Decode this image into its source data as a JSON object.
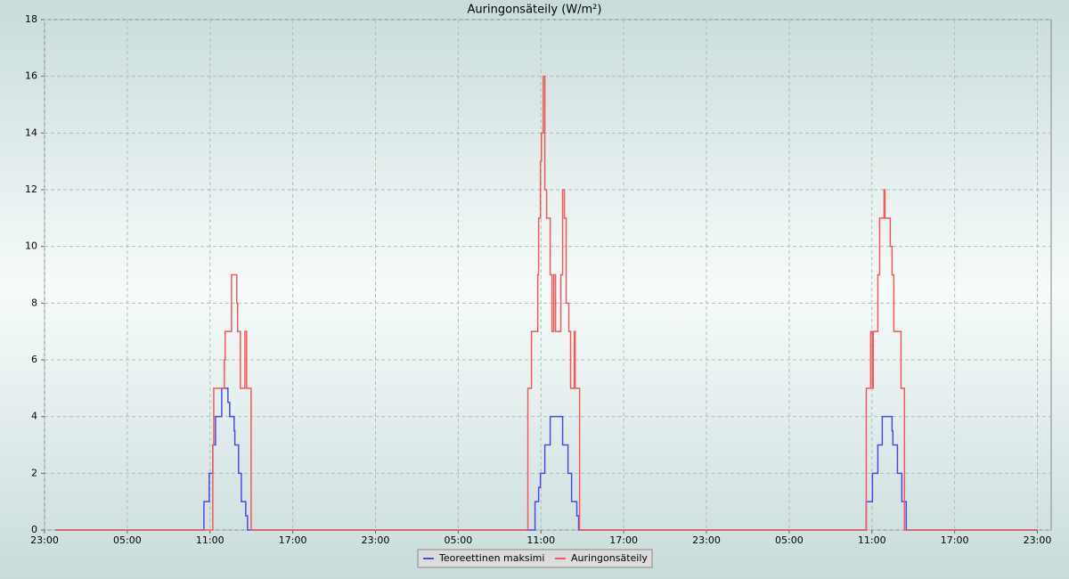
{
  "chart_data": {
    "type": "line",
    "drawstyle": "steps-post",
    "title": "Auringonsäteily (W/m²)",
    "xlim": [
      0,
      73
    ],
    "ylim": [
      0,
      18
    ],
    "xticks": [
      {
        "value": 0,
        "label": "23:00"
      },
      {
        "value": 6,
        "label": "05:00"
      },
      {
        "value": 12,
        "label": "11:00"
      },
      {
        "value": 18,
        "label": "17:00"
      },
      {
        "value": 24,
        "label": "23:00"
      },
      {
        "value": 30,
        "label": "05:00"
      },
      {
        "value": 36,
        "label": "11:00"
      },
      {
        "value": 42,
        "label": "17:00"
      },
      {
        "value": 48,
        "label": "23:00"
      },
      {
        "value": 54,
        "label": "05:00"
      },
      {
        "value": 60,
        "label": "11:00"
      },
      {
        "value": 66,
        "label": "17:00"
      },
      {
        "value": 72,
        "label": "23:00"
      }
    ],
    "yticks": [
      0,
      2,
      4,
      6,
      8,
      10,
      12,
      14,
      16,
      18
    ],
    "grid": true,
    "series": [
      {
        "name": "Teoreettinen maksimi",
        "color": "#4a4ae8",
        "x": [
          0.8,
          11.56,
          11.94,
          12.2,
          12.4,
          12.85,
          13.3,
          13.43,
          13.75,
          13.8,
          14.07,
          14.27,
          14.59,
          14.72,
          35.57,
          35.83,
          35.96,
          36.28,
          36.67,
          37.57,
          37.96,
          38.22,
          38.6,
          38.73,
          59.59,
          60.04,
          60.43,
          60.75,
          61.46,
          61.52,
          61.85,
          62.17,
          62.49,
          72
        ],
        "values": [
          0,
          1,
          2,
          3,
          4,
          5,
          4.5,
          4,
          3.5,
          3,
          2,
          1,
          0.5,
          0,
          1,
          1.5,
          2,
          3,
          4,
          3,
          2,
          1,
          0.5,
          0,
          1,
          2,
          3,
          4,
          3.5,
          3,
          2,
          1,
          0,
          0
        ]
      },
      {
        "name": "Auringonsäteily",
        "color": "#f05a5a",
        "x": [
          0.8,
          12.2,
          12.27,
          13.04,
          13.1,
          13.56,
          13.94,
          14.0,
          14.2,
          14.53,
          14.65,
          14.98,
          35.05,
          35.31,
          35.77,
          35.83,
          35.96,
          36.03,
          36.16,
          36.28,
          36.41,
          36.67,
          36.8,
          36.93,
          37.06,
          37.44,
          37.57,
          37.7,
          37.83,
          38.02,
          38.15,
          38.41,
          38.48,
          38.8,
          59.59,
          59.91,
          60.04,
          60.1,
          60.43,
          60.56,
          60.88,
          60.95,
          61.33,
          61.46,
          61.59,
          62.11,
          62.36,
          72
        ],
        "values": [
          0,
          3,
          5,
          6,
          7,
          9,
          8,
          7,
          5,
          7,
          5,
          0,
          5,
          7,
          9,
          11,
          13,
          14,
          16,
          12,
          11,
          9,
          7,
          9,
          7,
          9,
          12,
          11,
          8,
          7,
          5,
          7,
          5,
          0,
          5,
          7,
          5,
          7,
          9,
          11,
          12,
          11,
          10,
          9,
          7,
          5,
          0,
          0
        ]
      }
    ]
  }
}
